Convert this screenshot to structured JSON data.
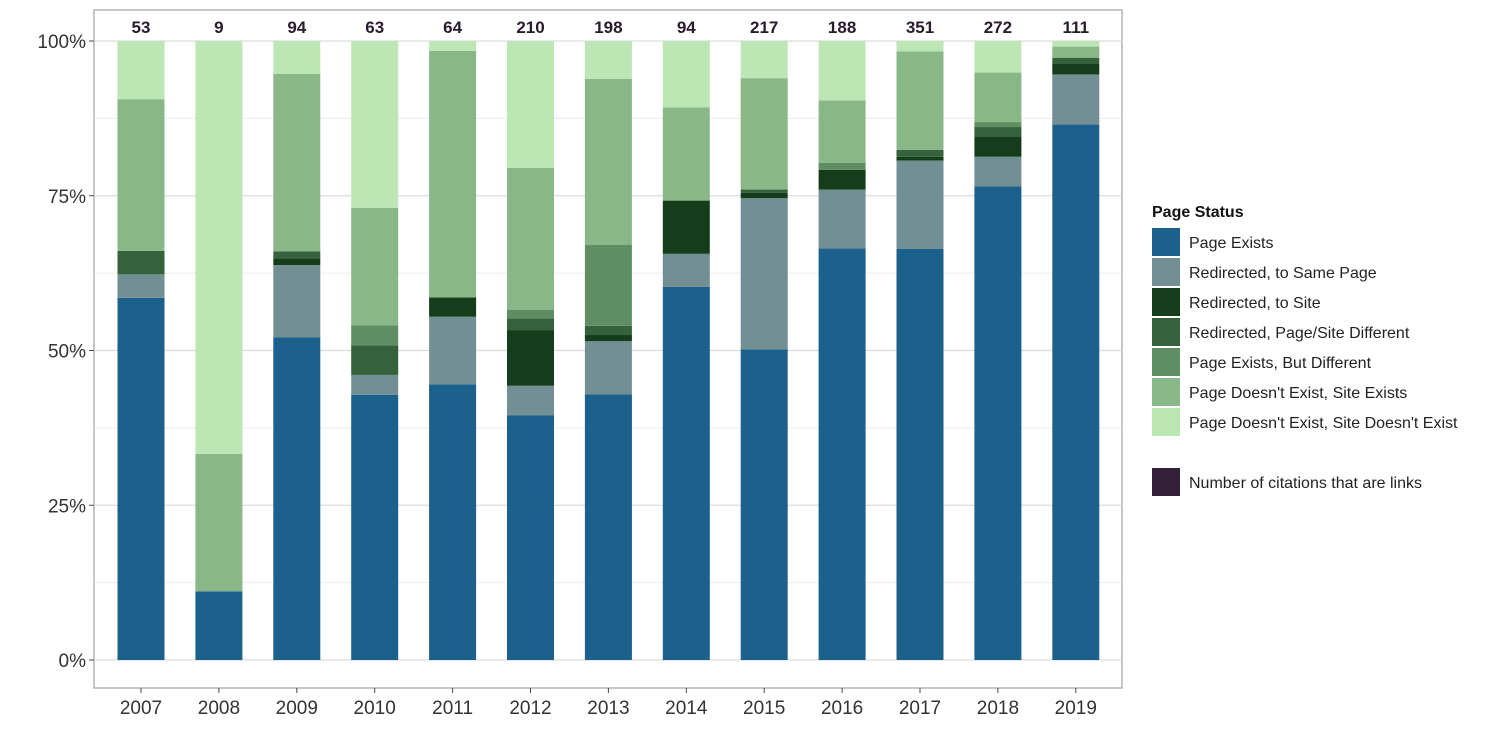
{
  "chart_data": {
    "type": "bar",
    "stacked": true,
    "normalized": true,
    "categories": [
      "2007",
      "2008",
      "2009",
      "2010",
      "2011",
      "2012",
      "2013",
      "2014",
      "2015",
      "2016",
      "2017",
      "2018",
      "2019"
    ],
    "counts": [
      "53",
      "9",
      "94",
      "63",
      "64",
      "210",
      "198",
      "94",
      "217",
      "188",
      "351",
      "272",
      "111"
    ],
    "y_tick_labels": [
      "0%",
      "25%",
      "50%",
      "75%",
      "100%"
    ],
    "ylim": [
      0,
      100
    ],
    "grid": true,
    "legend_position": "right",
    "legend_title": "Page Status",
    "count_legend_label": "Number of citations that are links",
    "count_color": "#35203b",
    "series": [
      {
        "name": "Page Exists",
        "color": "#1b618b",
        "values": [
          58.5,
          11.1,
          52.1,
          42.9,
          44.5,
          39.5,
          42.9,
          59.6,
          50.2,
          66.5,
          66.4,
          76.5,
          86.5
        ]
      },
      {
        "name": "Redirected, to Same Page",
        "color": "#728f93",
        "values": [
          3.8,
          0,
          11.7,
          3.2,
          10.9,
          4.8,
          8.6,
          5.3,
          24.4,
          9.5,
          14.3,
          4.8,
          8.1
        ]
      },
      {
        "name": "Redirected, to Site",
        "color": "#153d1c",
        "values": [
          0,
          0,
          1.1,
          0,
          3.1,
          9.0,
          1.0,
          8.5,
          0.9,
          3.2,
          0.6,
          3.3,
          1.8
        ]
      },
      {
        "name": "Redirected, Page/Site Different",
        "color": "#35613b",
        "values": [
          3.8,
          0,
          1.1,
          4.8,
          0,
          1.9,
          1.5,
          0,
          0.5,
          0,
          1.1,
          1.5,
          0.9
        ]
      },
      {
        "name": "Page Exists, But Different",
        "color": "#5e8e62",
        "values": [
          0,
          0,
          0,
          3.2,
          0,
          1.4,
          13.1,
          0,
          0,
          1.1,
          0,
          0.8,
          0
        ]
      },
      {
        "name": "Page Doesn't Exist, Site Exists",
        "color": "#8ab787",
        "values": [
          24.5,
          22.2,
          28.7,
          19.0,
          39.8,
          22.9,
          26.8,
          14.9,
          18.0,
          10.1,
          15.9,
          8.0,
          1.8
        ]
      },
      {
        "name": "Page Doesn't Exist, Site Doesn't Exist",
        "color": "#bde6b5",
        "values": [
          9.4,
          66.7,
          5.3,
          27.0,
          1.6,
          20.5,
          6.1,
          10.6,
          6.0,
          9.6,
          1.7,
          5.1,
          0.9
        ]
      }
    ]
  }
}
